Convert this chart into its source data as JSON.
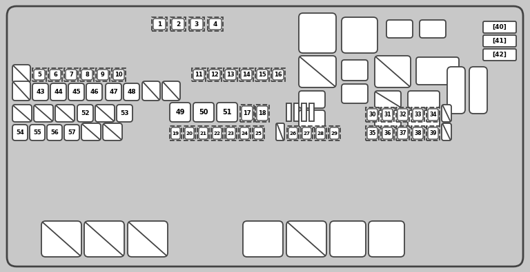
{
  "bg_color": "#c8c8c8",
  "border_color": "#444444",
  "white": "#ffffff",
  "fig_w": 7.68,
  "fig_h": 3.95,
  "dpi": 100
}
